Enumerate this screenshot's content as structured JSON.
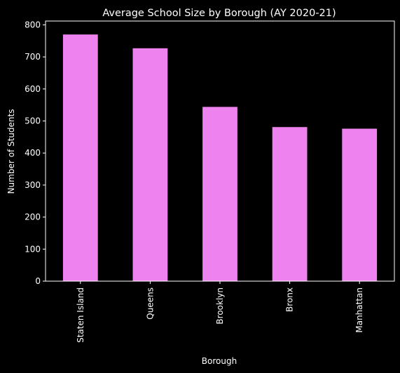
{
  "chart_data": {
    "type": "bar",
    "title": "Average School Size by Borough (AY 2020-21)",
    "xlabel": "Borough",
    "ylabel": "Number of Students",
    "categories": [
      "Staten Island",
      "Queens",
      "Brooklyn",
      "Bronx",
      "Manhattan"
    ],
    "values": [
      770,
      727,
      544,
      481,
      476
    ],
    "ylim": [
      0,
      812
    ],
    "yticks": [
      0,
      100,
      200,
      300,
      400,
      500,
      600,
      700,
      800
    ],
    "grid": false,
    "legend": "none",
    "colors": {
      "bar": "#ee82ee",
      "background": "#000000",
      "text": "#ffffff"
    }
  }
}
